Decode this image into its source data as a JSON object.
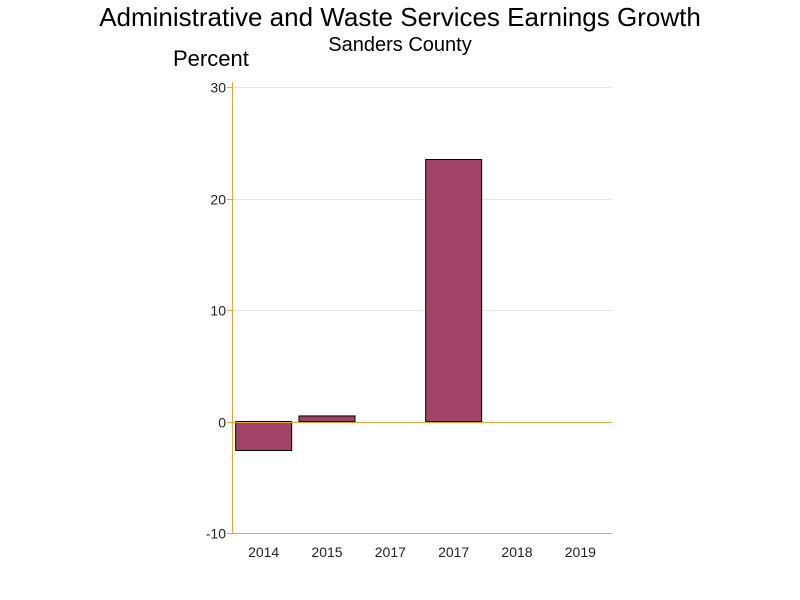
{
  "chart_data": {
    "type": "bar",
    "title": "Administrative and Waste Services Earnings Growth",
    "subtitle": "Sanders County",
    "ylabel": "Percent",
    "xlabel": "",
    "categories": [
      "2014",
      "2015",
      "2017",
      "2017",
      "2018",
      "2019"
    ],
    "values": [
      -2.6,
      0.5,
      0,
      23.5,
      0,
      0
    ],
    "ylim": [
      -10,
      30
    ],
    "yticks": [
      -10,
      0,
      10,
      20,
      30
    ],
    "grid": true,
    "legend": "none"
  },
  "colors": {
    "bar_fill": "#a04366",
    "bar_stroke": "#000000",
    "axis": "#e8a33a",
    "grid": "#e4e4e4"
  }
}
